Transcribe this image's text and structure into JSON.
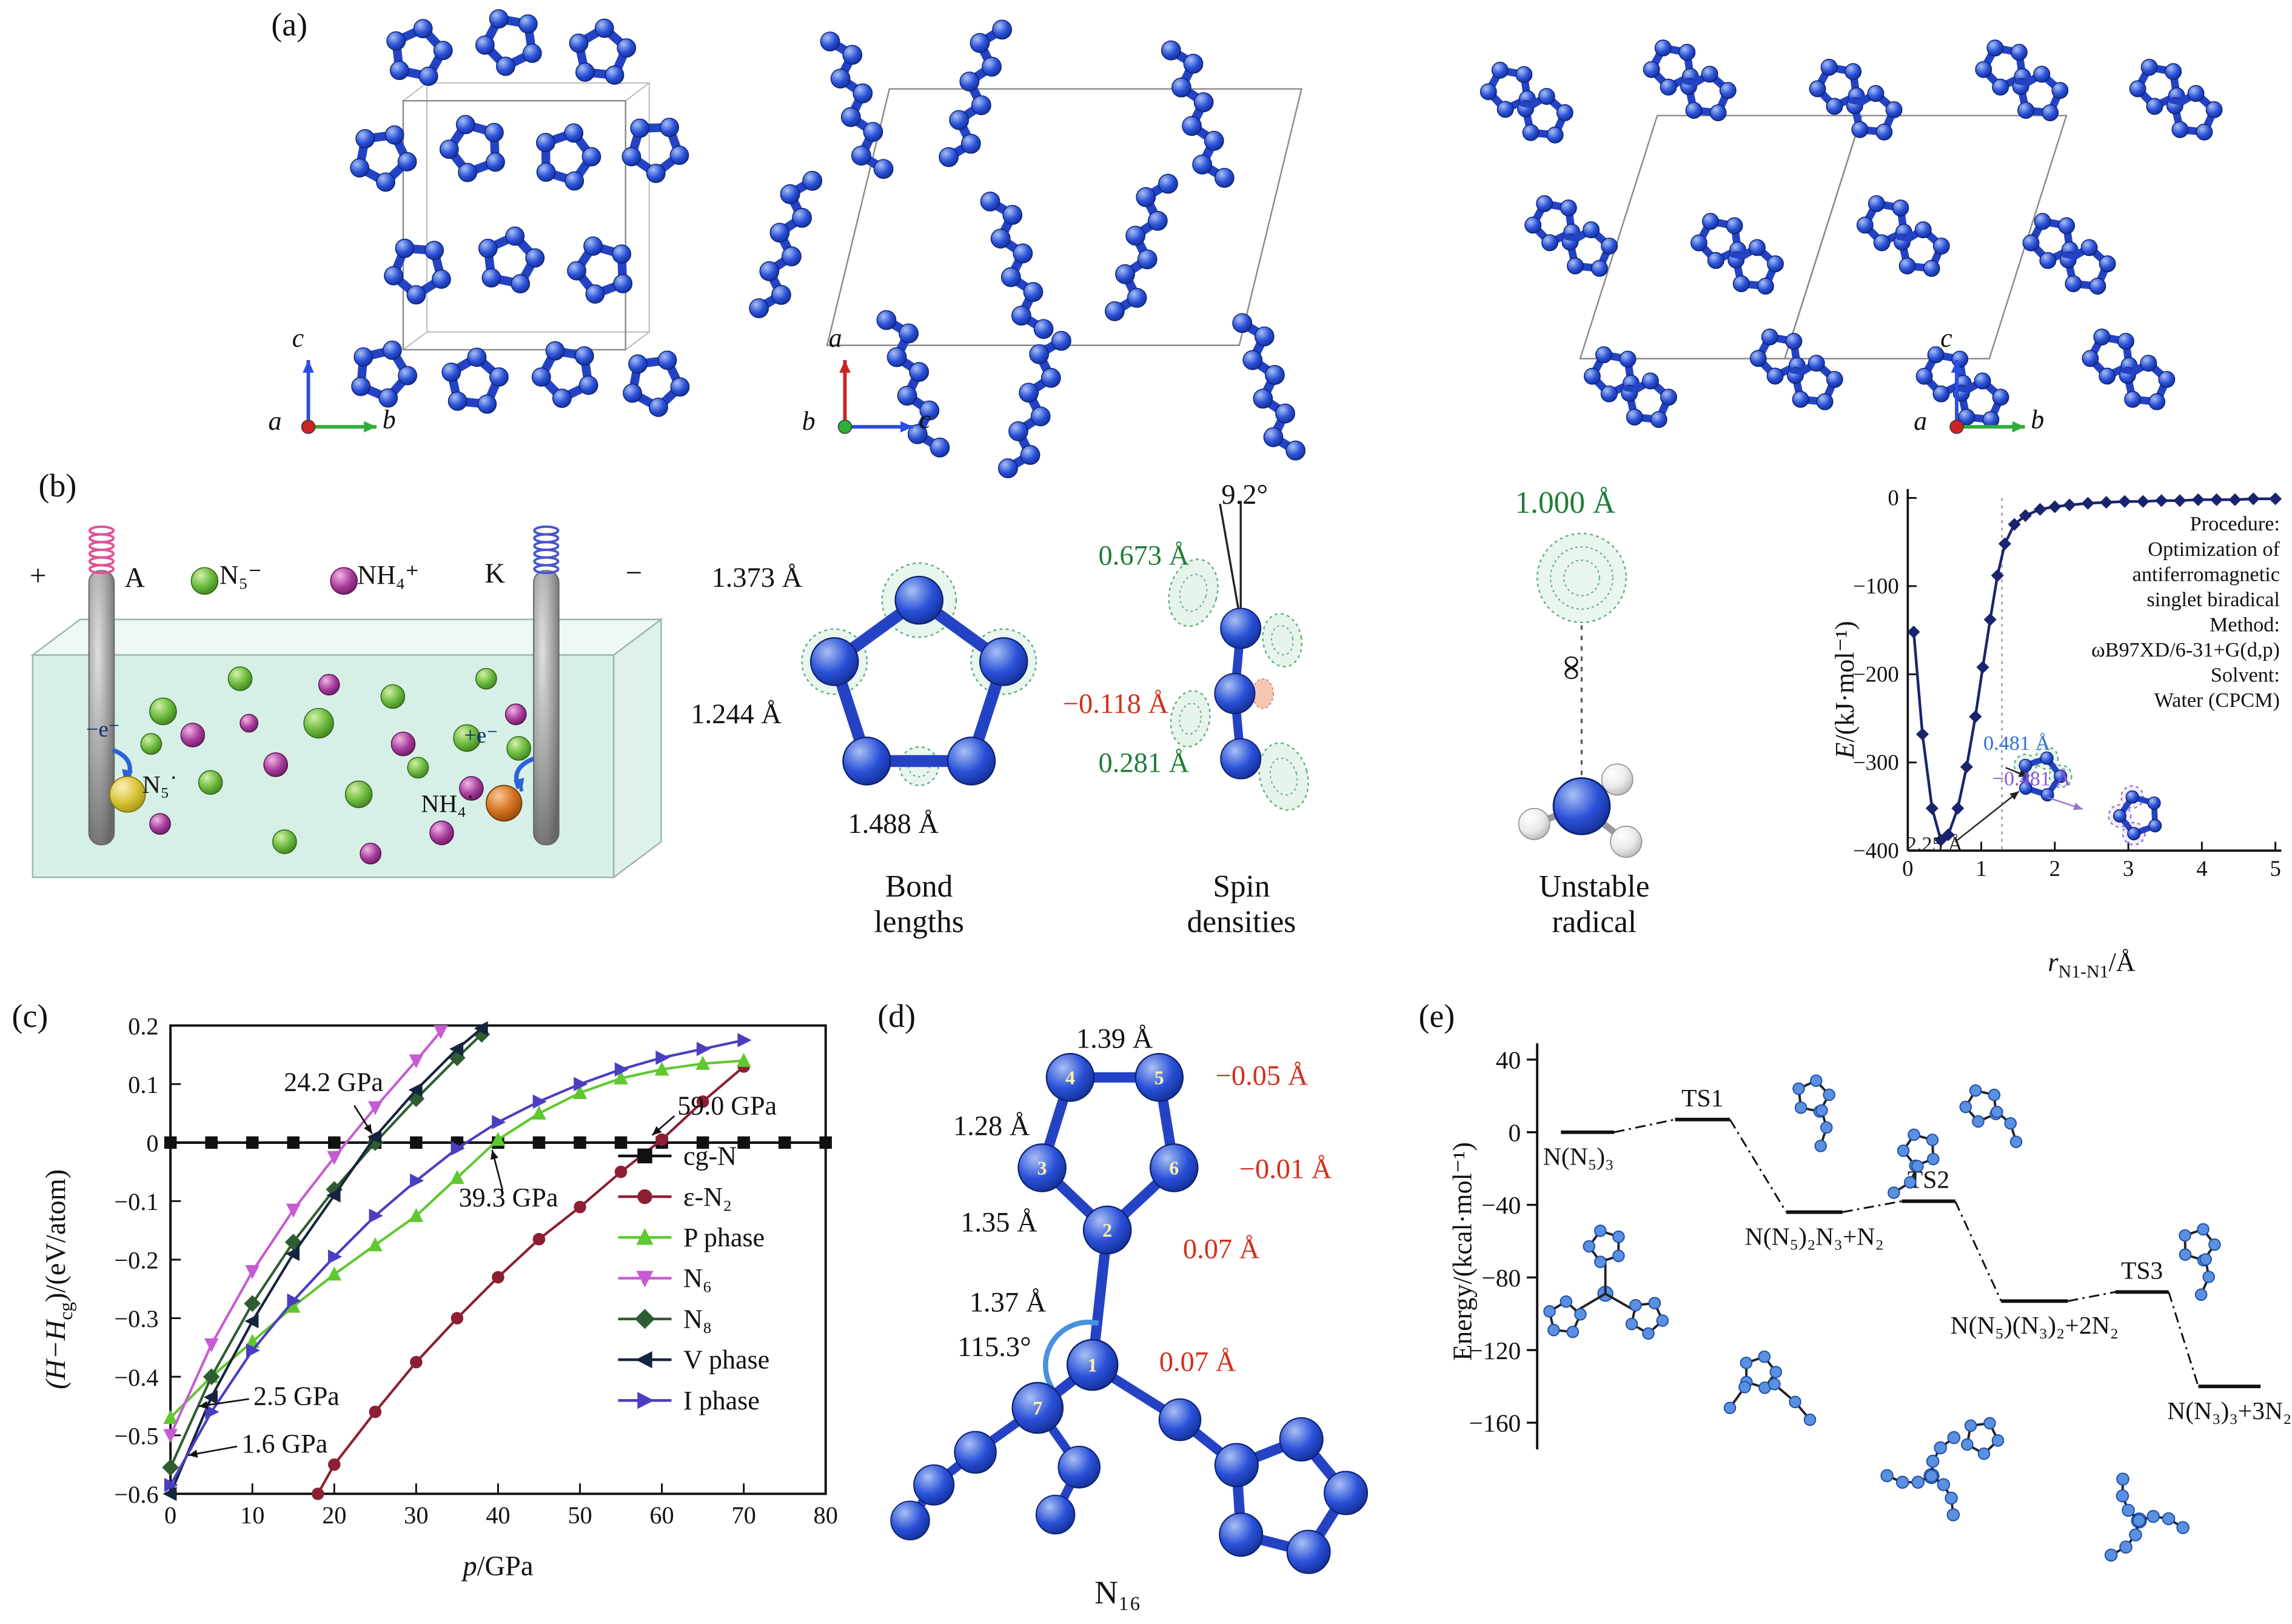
{
  "panel_a": {
    "label": "(a)",
    "axis_sets": [
      {
        "up": "c",
        "right": "b",
        "origin": "a"
      },
      {
        "up": "a",
        "right": "c",
        "origin": "b"
      },
      {
        "up": "c",
        "right": "b",
        "origin": "a"
      }
    ]
  },
  "panel_b": {
    "label": "(b)",
    "cell": {
      "plus": "+",
      "electrode_left": "A",
      "anion_legend": "N₅⁻",
      "cation_legend": "NH₄⁺",
      "electrode_right": "K",
      "minus": "−",
      "anode_electron": "−e⁻",
      "anode_radical": "N₅˙",
      "cathode_electron": "+e⁻",
      "cathode_radical": "NH₄˙"
    },
    "bond_lengths": {
      "caption": "Bond lengths",
      "bond_top_left": "1.373 Å",
      "bond_left": "1.244 Å",
      "bond_bottom": "1.488 Å"
    },
    "spin_densities": {
      "caption": "Spin densities",
      "angle": "9.2°",
      "value_top": "0.673 Å",
      "value_mid": "−0.118 Å",
      "value_bottom": "0.281 Å"
    },
    "unstable_radical": {
      "caption": "Unstable radical",
      "distance": "1.000 Å",
      "infinity": "∞"
    }
  },
  "panel_c": {
    "label": "(c)"
  },
  "panel_d": {
    "label": "(d)",
    "caption": "N₁₆",
    "atom_numbers": [
      "4",
      "5",
      "3",
      "6",
      "2",
      "1",
      "7"
    ],
    "bonds": {
      "b45": "1.39 Å",
      "b34": "1.28 Å",
      "b32": "1.35 Å",
      "b21": "1.37 Å"
    },
    "angle": "115.3°",
    "deviations": {
      "d5": "−0.05 Å",
      "d6": "−0.01 Å",
      "d2": "0.07 Å",
      "d1": "0.07 Å"
    }
  },
  "panel_e": {
    "label": "(e)"
  },
  "chart_data": [
    {
      "id": "biradical-energy-curve",
      "type": "line",
      "xlabel": {
        "var": "r",
        "sub": "N1-N1",
        "unit": "/Å"
      },
      "ylabel": {
        "var": "E",
        "unit": "/(kJ·mol⁻¹)"
      },
      "xlim": [
        0,
        5
      ],
      "ylim": [
        -400,
        0
      ],
      "xticks": [
        "0",
        "1",
        "2",
        "3",
        "4",
        "5"
      ],
      "yticks": [
        "0",
        "−100",
        "−200",
        "−300",
        "−400"
      ],
      "line_color": "#18246d",
      "marker": "diamond",
      "dotted_line_x": 1.28,
      "x": [
        0.08,
        0.2,
        0.33,
        0.45,
        0.55,
        0.68,
        0.8,
        0.92,
        1.02,
        1.12,
        1.22,
        1.32,
        1.45,
        1.6,
        1.8,
        2.0,
        2.2,
        2.45,
        2.7,
        2.95,
        3.2,
        3.45,
        3.7,
        3.95,
        4.2,
        4.45,
        4.7,
        5.0
      ],
      "y": [
        -152,
        -268,
        -352,
        -388,
        -382,
        -352,
        -305,
        -248,
        -192,
        -138,
        -88,
        -52,
        -30,
        -20,
        -13,
        -10,
        -8,
        -6,
        -5,
        -4,
        -4,
        -3,
        -3,
        -2,
        -2,
        -2,
        -1,
        -1
      ],
      "notes": [
        "Procedure:",
        "Optimization of",
        "antiferromagnetic",
        "singlet biradical",
        "Method:",
        "ωB97XD/6-31+G(d,p)",
        "Solvent:",
        "Water (CPCM)"
      ],
      "inset_labels": [
        {
          "text": "0.481 Å",
          "color": "#2f6fd6"
        },
        {
          "text": "−0.481 Å",
          "color": "#8b55d6"
        },
        {
          "text": "2.25 Å",
          "color": "#1a1a1a"
        }
      ]
    },
    {
      "id": "enthalpy-vs-pressure",
      "type": "line",
      "xlabel": {
        "var": "p",
        "unit": "/GPa"
      },
      "ylabel": {
        "pre": "(H−H",
        "sub": "cg",
        "post": ")/(eV/atom)"
      },
      "xlim": [
        0,
        80
      ],
      "ylim": [
        -0.6,
        0.2
      ],
      "xticks": [
        "0",
        "10",
        "20",
        "30",
        "40",
        "50",
        "60",
        "70",
        "80"
      ],
      "yticks": [
        "0.2",
        "0.1",
        "0",
        "−0.1",
        "−0.2",
        "−0.3",
        "−0.4",
        "−0.5",
        "−0.6"
      ],
      "legend_position": "right-middle",
      "series": [
        {
          "name": "cg-N",
          "color": "#111111",
          "marker": "square",
          "x": [
            0,
            5,
            10,
            15,
            20,
            25,
            30,
            35,
            40,
            45,
            50,
            55,
            60,
            65,
            70,
            75,
            80
          ],
          "y": [
            0,
            0,
            0,
            0,
            0,
            0,
            0,
            0,
            0,
            0,
            0,
            0,
            0,
            0,
            0,
            0,
            0
          ]
        },
        {
          "name": "ε-N₂",
          "color": "#8c1f33",
          "marker": "circle",
          "x": [
            18,
            20,
            25,
            30,
            35,
            40,
            45,
            50,
            55,
            60,
            65,
            70
          ],
          "y": [
            -0.6,
            -0.55,
            -0.46,
            -0.375,
            -0.3,
            -0.23,
            -0.165,
            -0.11,
            -0.05,
            0.005,
            0.07,
            0.13
          ]
        },
        {
          "name": "P phase",
          "color": "#5fc82e",
          "marker": "triangle-up",
          "x": [
            0,
            5,
            10,
            15,
            20,
            25,
            30,
            35,
            40,
            45,
            50,
            55,
            60,
            65,
            70
          ],
          "y": [
            -0.47,
            -0.4,
            -0.34,
            -0.28,
            -0.225,
            -0.175,
            -0.125,
            -0.06,
            0.005,
            0.05,
            0.085,
            0.11,
            0.125,
            0.135,
            0.14
          ]
        },
        {
          "name": "N₆",
          "color": "#c75bd3",
          "marker": "triangle-down",
          "x": [
            0,
            5,
            10,
            15,
            20,
            25,
            30,
            33
          ],
          "y": [
            -0.5,
            -0.345,
            -0.22,
            -0.115,
            -0.025,
            0.06,
            0.14,
            0.19
          ]
        },
        {
          "name": "N₈",
          "color": "#2e5d32",
          "marker": "diamond",
          "x": [
            0,
            5,
            10,
            15,
            20,
            25,
            30,
            35,
            38
          ],
          "y": [
            -0.555,
            -0.4,
            -0.275,
            -0.17,
            -0.08,
            0.0,
            0.075,
            0.145,
            0.185
          ]
        },
        {
          "name": "V phase",
          "color": "#16233f",
          "marker": "triangle-left",
          "x": [
            0,
            5,
            10,
            15,
            20,
            25,
            30,
            35,
            38
          ],
          "y": [
            -0.6,
            -0.435,
            -0.305,
            -0.19,
            -0.09,
            0.01,
            0.09,
            0.16,
            0.195
          ]
        },
        {
          "name": "I phase",
          "color": "#4a3ec0",
          "marker": "triangle-right",
          "x": [
            0,
            5,
            10,
            15,
            20,
            25,
            30,
            35,
            40,
            45,
            50,
            55,
            60,
            65,
            70
          ],
          "y": [
            -0.585,
            -0.46,
            -0.355,
            -0.27,
            -0.195,
            -0.125,
            -0.065,
            -0.01,
            0.035,
            0.07,
            0.1,
            0.125,
            0.145,
            0.16,
            0.175
          ]
        }
      ],
      "annotations": [
        {
          "text": "24.2 GPa"
        },
        {
          "text": "59.0 GPa"
        },
        {
          "text": "39.3 GPa"
        },
        {
          "text": "2.5 GPa"
        },
        {
          "text": "1.6 GPa"
        }
      ]
    },
    {
      "id": "decomposition-pathway",
      "type": "energy-diagram",
      "ylabel": "Energy/(kcal·mol⁻¹)",
      "ylim": [
        -170,
        55
      ],
      "yticks": [
        "40",
        "0",
        "−40",
        "−80",
        "−120",
        "−160"
      ],
      "ytick_values": [
        40,
        0,
        -40,
        -80,
        -120,
        -160
      ],
      "levels": [
        {
          "label": "N(N₅)₃",
          "energy": 0,
          "label_pos": "left-below"
        },
        {
          "label": "TS1",
          "energy": 7,
          "label_pos": "above"
        },
        {
          "label": "N(N₅)₂N₃+N₂",
          "energy": -44,
          "label_pos": "below"
        },
        {
          "label": "TS2",
          "energy": -38,
          "label_pos": "above"
        },
        {
          "label": "N(N₅)(N₃)₂+2N₂",
          "energy": -93,
          "label_pos": "below"
        },
        {
          "label": "TS3",
          "energy": -88,
          "label_pos": "above"
        },
        {
          "label": "N(N₃)₃+3N₂",
          "energy": -140,
          "label_pos": "below"
        }
      ]
    }
  ]
}
